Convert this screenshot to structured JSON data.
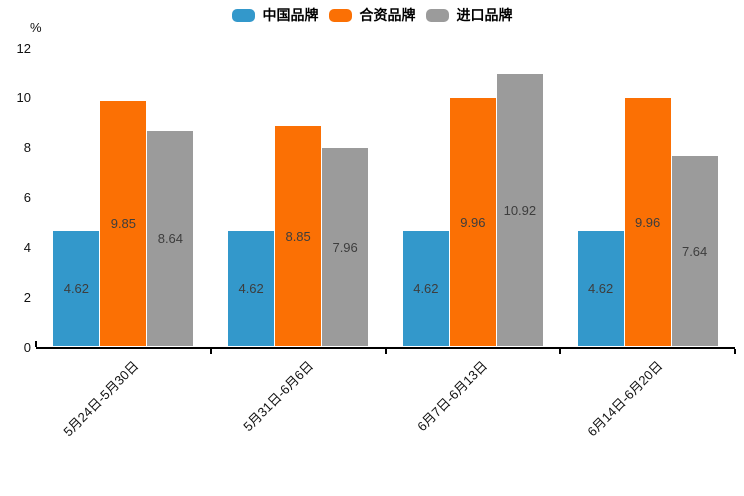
{
  "chart_data": {
    "type": "bar",
    "title": "",
    "xlabel": "",
    "ylabel": "%",
    "categories": [
      "5月24日-5月30日",
      "5月31日-6月6日",
      "6月7日-6月13日",
      "6月14日-6月20日"
    ],
    "series": [
      {
        "name": "中国品牌",
        "color": "#3398CB",
        "values": [
          4.62,
          4.62,
          4.62,
          4.62
        ]
      },
      {
        "name": "合资品牌",
        "color": "#FB7004",
        "values": [
          9.85,
          8.85,
          9.96,
          9.96
        ]
      },
      {
        "name": "进口品牌",
        "color": "#9B9B9B",
        "values": [
          8.64,
          7.96,
          10.92,
          7.64
        ]
      }
    ],
    "ylim": [
      0,
      12
    ],
    "yticks": [
      0,
      2,
      4,
      6,
      8,
      10,
      12
    ],
    "grid": false,
    "legend_position": "top",
    "value_labels": true,
    "value_label_decimals": 2
  },
  "colors": {
    "background": "#FFFFFF",
    "axis": "#000000",
    "value_label_text": "#3D3D3D",
    "tick_label_text": "#111111"
  }
}
